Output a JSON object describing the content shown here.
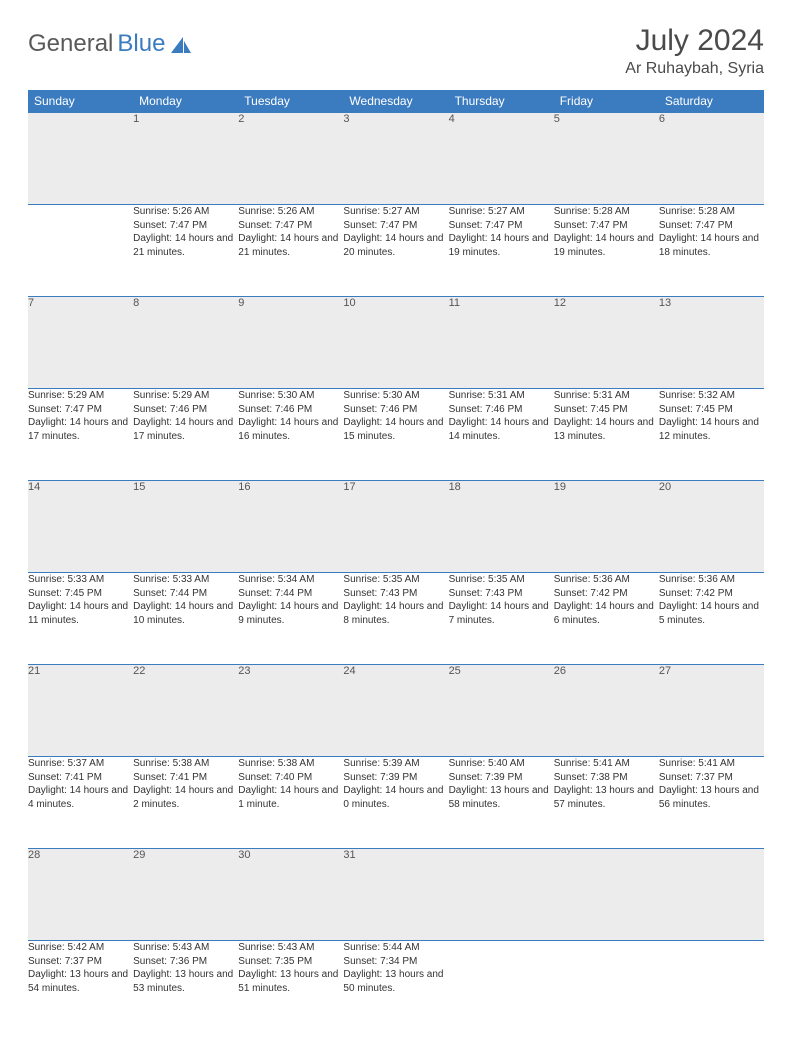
{
  "brand": {
    "part1": "General",
    "part2": "Blue",
    "accent": "#3b7bbf",
    "muted": "#5a5a5a"
  },
  "title": {
    "month_year": "July 2024",
    "location": "Ar Ruhaybah, Syria"
  },
  "colors": {
    "header_bg": "#3b7bbf",
    "header_fg": "#ffffff",
    "daynum_bg": "#ececec",
    "border": "#3b7bbf",
    "text": "#333333"
  },
  "typography": {
    "title_fontsize": 30,
    "location_fontsize": 16,
    "dayheader_fontsize": 12,
    "daynum_fontsize": 11,
    "body_fontsize": 10
  },
  "layout": {
    "columns": 7,
    "rows": 5,
    "first_day_offset": 1
  },
  "day_headers": [
    "Sunday",
    "Monday",
    "Tuesday",
    "Wednesday",
    "Thursday",
    "Friday",
    "Saturday"
  ],
  "days": [
    {
      "n": 1,
      "sunrise": "5:26 AM",
      "sunset": "7:47 PM",
      "daylight": "14 hours and 21 minutes."
    },
    {
      "n": 2,
      "sunrise": "5:26 AM",
      "sunset": "7:47 PM",
      "daylight": "14 hours and 21 minutes."
    },
    {
      "n": 3,
      "sunrise": "5:27 AM",
      "sunset": "7:47 PM",
      "daylight": "14 hours and 20 minutes."
    },
    {
      "n": 4,
      "sunrise": "5:27 AM",
      "sunset": "7:47 PM",
      "daylight": "14 hours and 19 minutes."
    },
    {
      "n": 5,
      "sunrise": "5:28 AM",
      "sunset": "7:47 PM",
      "daylight": "14 hours and 19 minutes."
    },
    {
      "n": 6,
      "sunrise": "5:28 AM",
      "sunset": "7:47 PM",
      "daylight": "14 hours and 18 minutes."
    },
    {
      "n": 7,
      "sunrise": "5:29 AM",
      "sunset": "7:47 PM",
      "daylight": "14 hours and 17 minutes."
    },
    {
      "n": 8,
      "sunrise": "5:29 AM",
      "sunset": "7:46 PM",
      "daylight": "14 hours and 17 minutes."
    },
    {
      "n": 9,
      "sunrise": "5:30 AM",
      "sunset": "7:46 PM",
      "daylight": "14 hours and 16 minutes."
    },
    {
      "n": 10,
      "sunrise": "5:30 AM",
      "sunset": "7:46 PM",
      "daylight": "14 hours and 15 minutes."
    },
    {
      "n": 11,
      "sunrise": "5:31 AM",
      "sunset": "7:46 PM",
      "daylight": "14 hours and 14 minutes."
    },
    {
      "n": 12,
      "sunrise": "5:31 AM",
      "sunset": "7:45 PM",
      "daylight": "14 hours and 13 minutes."
    },
    {
      "n": 13,
      "sunrise": "5:32 AM",
      "sunset": "7:45 PM",
      "daylight": "14 hours and 12 minutes."
    },
    {
      "n": 14,
      "sunrise": "5:33 AM",
      "sunset": "7:45 PM",
      "daylight": "14 hours and 11 minutes."
    },
    {
      "n": 15,
      "sunrise": "5:33 AM",
      "sunset": "7:44 PM",
      "daylight": "14 hours and 10 minutes."
    },
    {
      "n": 16,
      "sunrise": "5:34 AM",
      "sunset": "7:44 PM",
      "daylight": "14 hours and 9 minutes."
    },
    {
      "n": 17,
      "sunrise": "5:35 AM",
      "sunset": "7:43 PM",
      "daylight": "14 hours and 8 minutes."
    },
    {
      "n": 18,
      "sunrise": "5:35 AM",
      "sunset": "7:43 PM",
      "daylight": "14 hours and 7 minutes."
    },
    {
      "n": 19,
      "sunrise": "5:36 AM",
      "sunset": "7:42 PM",
      "daylight": "14 hours and 6 minutes."
    },
    {
      "n": 20,
      "sunrise": "5:36 AM",
      "sunset": "7:42 PM",
      "daylight": "14 hours and 5 minutes."
    },
    {
      "n": 21,
      "sunrise": "5:37 AM",
      "sunset": "7:41 PM",
      "daylight": "14 hours and 4 minutes."
    },
    {
      "n": 22,
      "sunrise": "5:38 AM",
      "sunset": "7:41 PM",
      "daylight": "14 hours and 2 minutes."
    },
    {
      "n": 23,
      "sunrise": "5:38 AM",
      "sunset": "7:40 PM",
      "daylight": "14 hours and 1 minute."
    },
    {
      "n": 24,
      "sunrise": "5:39 AM",
      "sunset": "7:39 PM",
      "daylight": "14 hours and 0 minutes."
    },
    {
      "n": 25,
      "sunrise": "5:40 AM",
      "sunset": "7:39 PM",
      "daylight": "13 hours and 58 minutes."
    },
    {
      "n": 26,
      "sunrise": "5:41 AM",
      "sunset": "7:38 PM",
      "daylight": "13 hours and 57 minutes."
    },
    {
      "n": 27,
      "sunrise": "5:41 AM",
      "sunset": "7:37 PM",
      "daylight": "13 hours and 56 minutes."
    },
    {
      "n": 28,
      "sunrise": "5:42 AM",
      "sunset": "7:37 PM",
      "daylight": "13 hours and 54 minutes."
    },
    {
      "n": 29,
      "sunrise": "5:43 AM",
      "sunset": "7:36 PM",
      "daylight": "13 hours and 53 minutes."
    },
    {
      "n": 30,
      "sunrise": "5:43 AM",
      "sunset": "7:35 PM",
      "daylight": "13 hours and 51 minutes."
    },
    {
      "n": 31,
      "sunrise": "5:44 AM",
      "sunset": "7:34 PM",
      "daylight": "13 hours and 50 minutes."
    }
  ],
  "labels": {
    "sunrise": "Sunrise:",
    "sunset": "Sunset:",
    "daylight": "Daylight:"
  }
}
